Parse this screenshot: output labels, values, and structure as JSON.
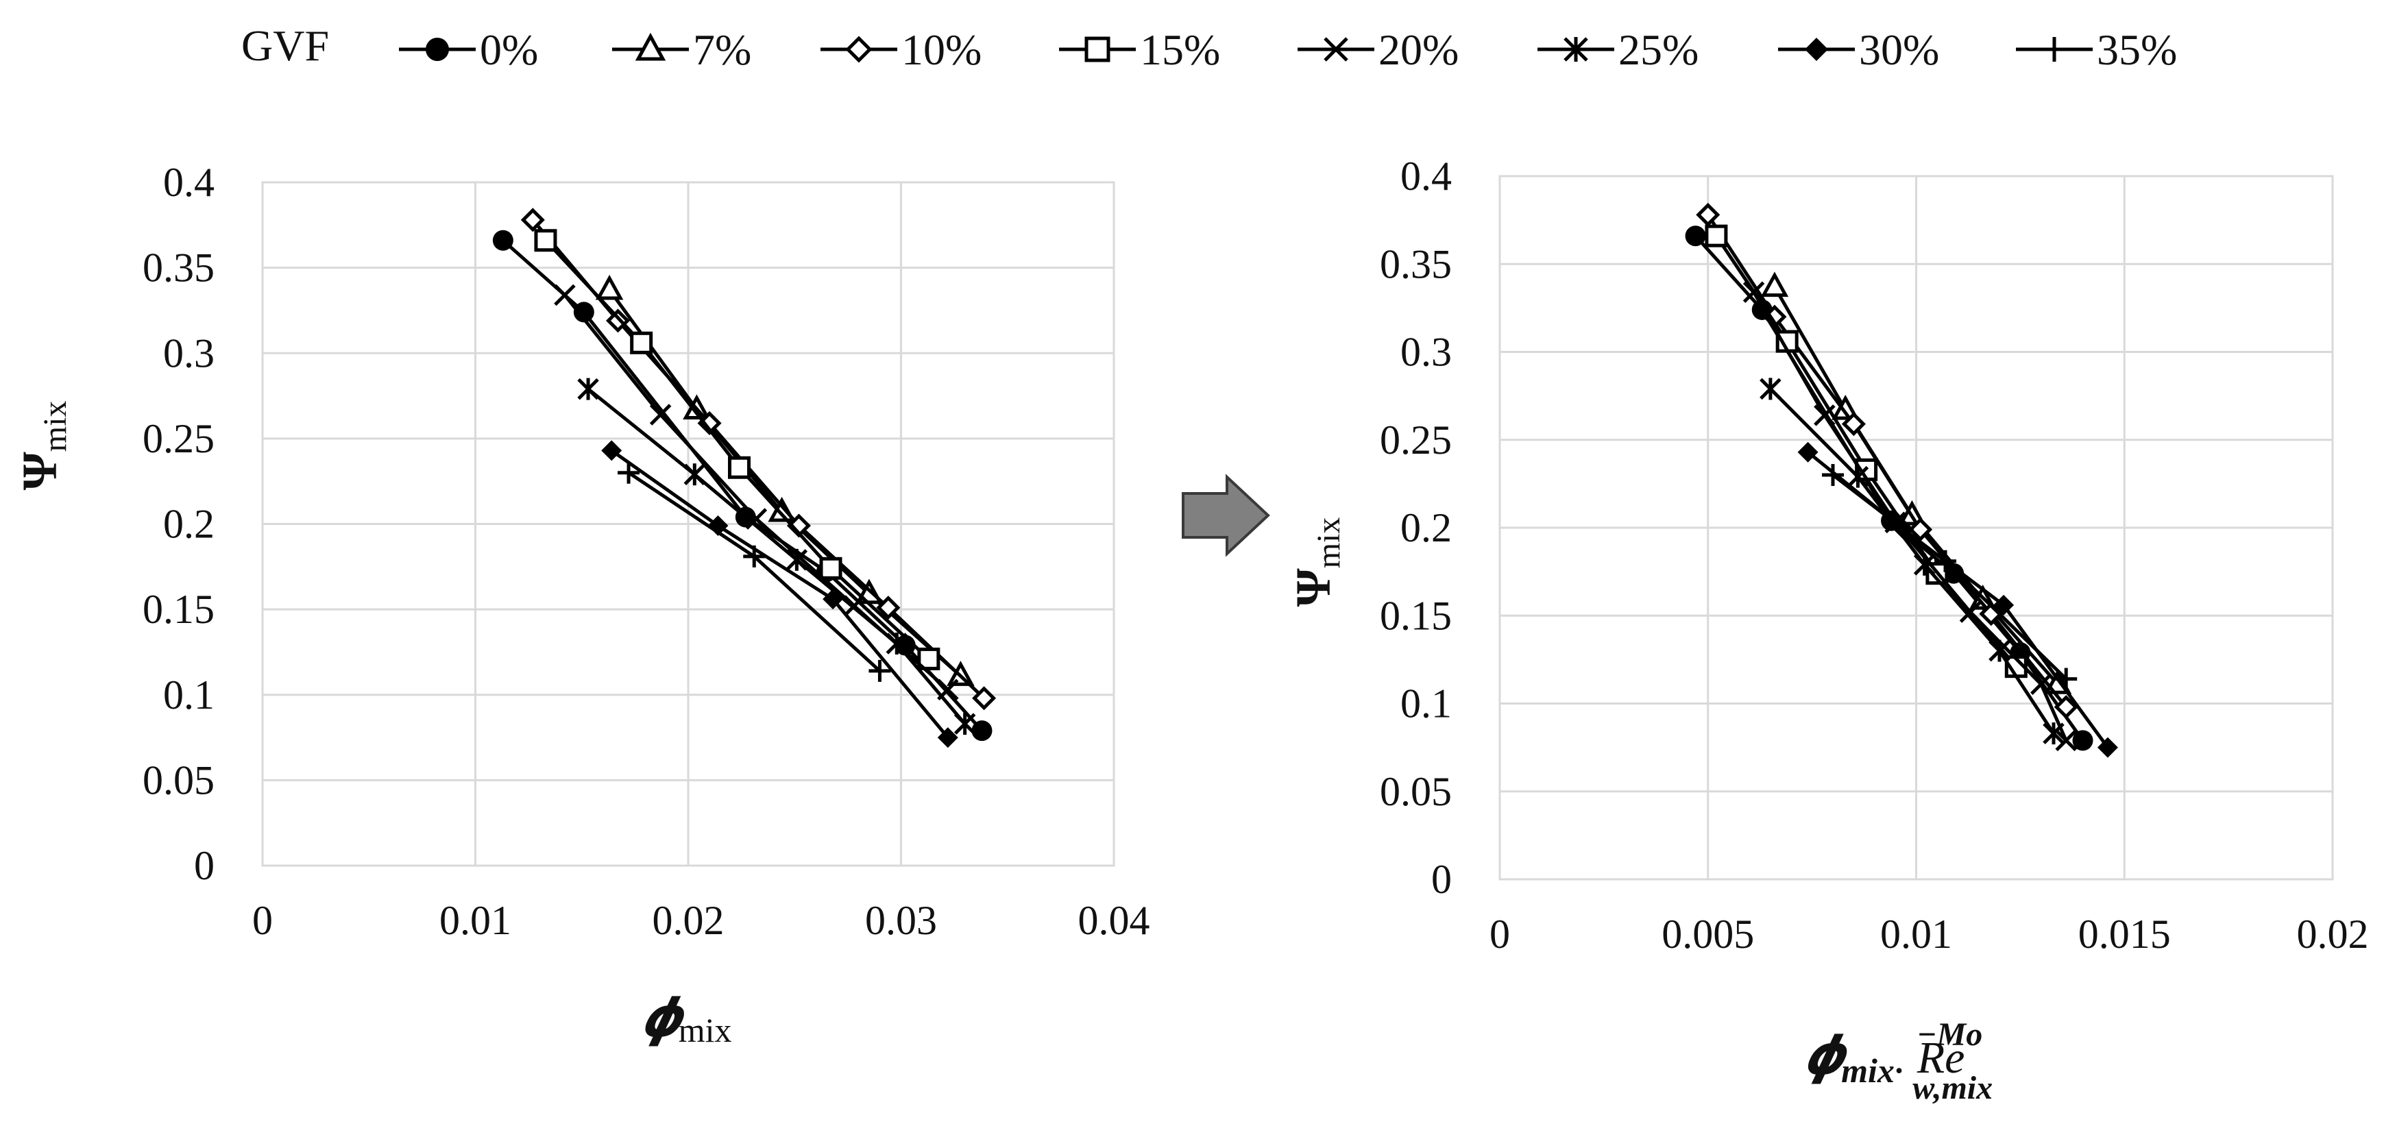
{
  "legend": {
    "title": "GVF",
    "entries": [
      {
        "label": "0%",
        "marker": "circle"
      },
      {
        "label": "7%",
        "marker": "triangle-open"
      },
      {
        "label": "10%",
        "marker": "diamond-open"
      },
      {
        "label": "15%",
        "marker": "square-open"
      },
      {
        "label": "20%",
        "marker": "x-cross"
      },
      {
        "label": "25%",
        "marker": "asterisk"
      },
      {
        "label": "30%",
        "marker": "diamond-filled"
      },
      {
        "label": "35%",
        "marker": "plus"
      }
    ]
  },
  "arrow": {
    "icon": "right-arrow-icon",
    "color": "#808080"
  },
  "chart_data": [
    {
      "type": "scatter",
      "ylabel_symbol": "Ψ",
      "ylabel_sub": "mix",
      "xlabel_symbol": "𝝓",
      "xlabel_sub": "mix",
      "xlim": [
        0,
        0.04
      ],
      "ylim": [
        0,
        0.4
      ],
      "xticks": [
        "0",
        "0.01",
        "0.02",
        "0.03",
        "0.04"
      ],
      "yticks": [
        "0",
        "0.05",
        "0.1",
        "0.15",
        "0.2",
        "0.25",
        "0.3",
        "0.35",
        "0.4"
      ],
      "grid": true,
      "series": [
        {
          "name": "0%",
          "x": [
            0.0113,
            0.0151,
            0.0227,
            0.0265,
            0.0302,
            0.0338
          ],
          "y": [
            0.366,
            0.324,
            0.204,
            0.172,
            0.129,
            0.079
          ]
        },
        {
          "name": "7%",
          "x": [
            0.0163,
            0.0204,
            0.0244,
            0.0285,
            0.0328
          ],
          "y": [
            0.337,
            0.267,
            0.207,
            0.159,
            0.111
          ]
        },
        {
          "name": "10%",
          "x": [
            0.0127,
            0.0167,
            0.021,
            0.0252,
            0.0294,
            0.0339
          ],
          "y": [
            0.378,
            0.319,
            0.259,
            0.199,
            0.151,
            0.098
          ]
        },
        {
          "name": "15%",
          "x": [
            0.0133,
            0.0178,
            0.0224,
            0.0267,
            0.0313
          ],
          "y": [
            0.366,
            0.306,
            0.233,
            0.174,
            0.121
          ]
        },
        {
          "name": "20%",
          "x": [
            0.0142,
            0.0187,
            0.0232,
            0.0278,
            0.0322
          ],
          "y": [
            0.334,
            0.264,
            0.203,
            0.152,
            0.103
          ]
        },
        {
          "name": "25%",
          "x": [
            0.0153,
            0.0203,
            0.0251,
            0.0298,
            0.033
          ],
          "y": [
            0.279,
            0.229,
            0.179,
            0.13,
            0.083
          ]
        },
        {
          "name": "30%",
          "x": [
            0.0164,
            0.0214,
            0.0268,
            0.0322
          ],
          "y": [
            0.243,
            0.199,
            0.156,
            0.075
          ]
        },
        {
          "name": "35%",
          "x": [
            0.0172,
            0.0231,
            0.029
          ],
          "y": [
            0.23,
            0.181,
            0.114
          ]
        }
      ]
    },
    {
      "type": "scatter",
      "ylabel_symbol": "Ψ",
      "ylabel_sub": "mix",
      "xlabel_symbol": "𝝓",
      "xlabel_sub": "mix",
      "xlabel_rest": ". Re",
      "xlabel_exp": "−Mo",
      "xlabel_sub2": "w,mix",
      "xlim": [
        0,
        0.02
      ],
      "ylim": [
        0,
        0.4
      ],
      "xticks": [
        "0",
        "0.005",
        "0.01",
        "0.015",
        "0.02"
      ],
      "yticks": [
        "0",
        "0.05",
        "0.1",
        "0.15",
        "0.2",
        "0.25",
        "0.3",
        "0.35",
        "0.4"
      ],
      "grid": true,
      "series": [
        {
          "name": "0%",
          "x": [
            0.0047,
            0.0063,
            0.0094,
            0.0109,
            0.0125,
            0.014
          ],
          "y": [
            0.366,
            0.324,
            0.204,
            0.174,
            0.129,
            0.079
          ]
        },
        {
          "name": "7%",
          "x": [
            0.0066,
            0.0083,
            0.0099,
            0.0116,
            0.0134
          ],
          "y": [
            0.337,
            0.267,
            0.207,
            0.159,
            0.111
          ]
        },
        {
          "name": "10%",
          "x": [
            0.005,
            0.0066,
            0.0085,
            0.0101,
            0.0118,
            0.0136
          ],
          "y": [
            0.378,
            0.32,
            0.259,
            0.199,
            0.151,
            0.098
          ]
        },
        {
          "name": "15%",
          "x": [
            0.0052,
            0.0069,
            0.0088,
            0.0105,
            0.0124
          ],
          "y": [
            0.366,
            0.306,
            0.233,
            0.174,
            0.121
          ]
        },
        {
          "name": "20%",
          "x": [
            0.0061,
            0.0078,
            0.0095,
            0.0113,
            0.013,
            0.0136
          ],
          "y": [
            0.334,
            0.264,
            0.203,
            0.152,
            0.111,
            0.079
          ]
        },
        {
          "name": "25%",
          "x": [
            0.0065,
            0.0086,
            0.0102,
            0.012,
            0.0133
          ],
          "y": [
            0.279,
            0.229,
            0.179,
            0.13,
            0.083
          ]
        },
        {
          "name": "30%",
          "x": [
            0.0074,
            0.0097,
            0.0121,
            0.0146
          ],
          "y": [
            0.243,
            0.199,
            0.156,
            0.075
          ]
        },
        {
          "name": "35%",
          "x": [
            0.008,
            0.0107,
            0.0136
          ],
          "y": [
            0.23,
            0.181,
            0.114
          ]
        }
      ]
    }
  ]
}
